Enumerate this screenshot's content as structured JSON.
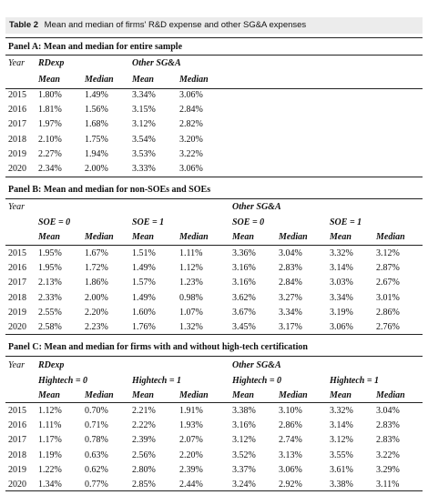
{
  "caption": {
    "label": "Table 2",
    "text": "Mean and median of firms' R&D expense and other SG&A expenses"
  },
  "common": {
    "year": "Year",
    "mean": "Mean",
    "median": "Median",
    "rdexp": "RDexp",
    "other": "Other SG&A"
  },
  "panelA": {
    "title": "Panel A: Mean and median for entire sample",
    "rows": [
      [
        "2015",
        "1.80%",
        "1.49%",
        "3.34%",
        "3.06%"
      ],
      [
        "2016",
        "1.81%",
        "1.56%",
        "3.15%",
        "2.84%"
      ],
      [
        "2017",
        "1.97%",
        "1.68%",
        "3.12%",
        "2.82%"
      ],
      [
        "2018",
        "2.10%",
        "1.75%",
        "3.54%",
        "3.20%"
      ],
      [
        "2019",
        "2.27%",
        "1.94%",
        "3.53%",
        "3.22%"
      ],
      [
        "2020",
        "2.34%",
        "2.00%",
        "3.33%",
        "3.06%"
      ]
    ]
  },
  "panelB": {
    "title": "Panel B: Mean and median for non-SOEs and SOEs",
    "soe0": "SOE = 0",
    "soe1": "SOE = 1",
    "rows": [
      [
        "2015",
        "1.95%",
        "1.67%",
        "1.51%",
        "1.11%",
        "3.36%",
        "3.04%",
        "3.32%",
        "3.12%"
      ],
      [
        "2016",
        "1.95%",
        "1.72%",
        "1.49%",
        "1.12%",
        "3.16%",
        "2.83%",
        "3.14%",
        "2.87%"
      ],
      [
        "2017",
        "2.13%",
        "1.86%",
        "1.57%",
        "1.23%",
        "3.16%",
        "2.84%",
        "3.03%",
        "2.67%"
      ],
      [
        "2018",
        "2.33%",
        "2.00%",
        "1.49%",
        "0.98%",
        "3.62%",
        "3.27%",
        "3.34%",
        "3.01%"
      ],
      [
        "2019",
        "2.55%",
        "2.20%",
        "1.60%",
        "1.07%",
        "3.67%",
        "3.34%",
        "3.19%",
        "2.86%"
      ],
      [
        "2020",
        "2.58%",
        "2.23%",
        "1.76%",
        "1.32%",
        "3.45%",
        "3.17%",
        "3.06%",
        "2.76%"
      ]
    ]
  },
  "panelC": {
    "title": "Panel C: Mean and median for firms with and without high-tech certification",
    "ht0": "Hightech = 0",
    "ht1": "Hightech = 1",
    "rows": [
      [
        "2015",
        "1.12%",
        "0.70%",
        "2.21%",
        "1.91%",
        "3.38%",
        "3.10%",
        "3.32%",
        "3.04%"
      ],
      [
        "2016",
        "1.11%",
        "0.71%",
        "2.22%",
        "1.93%",
        "3.16%",
        "2.86%",
        "3.14%",
        "2.83%"
      ],
      [
        "2017",
        "1.17%",
        "0.78%",
        "2.39%",
        "2.07%",
        "3.12%",
        "2.74%",
        "3.12%",
        "2.83%"
      ],
      [
        "2018",
        "1.19%",
        "0.63%",
        "2.56%",
        "2.20%",
        "3.52%",
        "3.13%",
        "3.55%",
        "3.22%"
      ],
      [
        "2019",
        "1.22%",
        "0.62%",
        "2.80%",
        "2.39%",
        "3.37%",
        "3.06%",
        "3.61%",
        "3.29%"
      ],
      [
        "2020",
        "1.34%",
        "0.77%",
        "2.85%",
        "2.44%",
        "3.24%",
        "2.92%",
        "3.38%",
        "3.11%"
      ]
    ]
  }
}
